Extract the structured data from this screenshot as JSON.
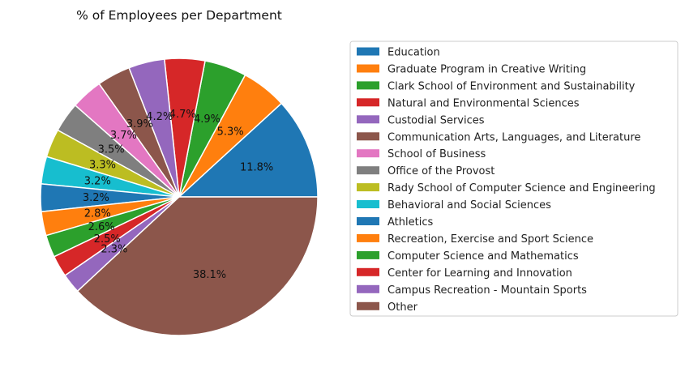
{
  "chart_data": {
    "type": "pie",
    "title": "% of Employees per Department",
    "legend_position": "right",
    "slices": [
      {
        "label": "Education",
        "value": 11.8,
        "pct_label": "11.8%",
        "color": "#1f77b4"
      },
      {
        "label": "Graduate Program in Creative Writing",
        "value": 5.3,
        "pct_label": "5.3%",
        "color": "#ff7f0e"
      },
      {
        "label": "Clark School of Environment and Sustainability",
        "value": 4.9,
        "pct_label": "4.9%",
        "color": "#2ca02c"
      },
      {
        "label": "Natural and Environmental Sciences",
        "value": 4.7,
        "pct_label": "4.7%",
        "color": "#d62728"
      },
      {
        "label": "Custodial Services",
        "value": 4.2,
        "pct_label": "4.2%",
        "color": "#9467bd"
      },
      {
        "label": "Communication Arts, Languages, and Literature",
        "value": 3.9,
        "pct_label": "3.9%",
        "color": "#8c564b"
      },
      {
        "label": "School of Business",
        "value": 3.7,
        "pct_label": "3.7%",
        "color": "#e377c2"
      },
      {
        "label": "Office of the Provost",
        "value": 3.5,
        "pct_label": "3.5%",
        "color": "#7f7f7f"
      },
      {
        "label": "Rady School of Computer Science and Engineering",
        "value": 3.3,
        "pct_label": "3.3%",
        "color": "#bcbd22"
      },
      {
        "label": "Behavioral and Social Sciences",
        "value": 3.2,
        "pct_label": "3.2%",
        "color": "#17becf"
      },
      {
        "label": "Athletics",
        "value": 3.2,
        "pct_label": "3.2%",
        "color": "#1f77b4"
      },
      {
        "label": "Recreation, Exercise and Sport Science",
        "value": 2.8,
        "pct_label": "2.8%",
        "color": "#ff7f0e"
      },
      {
        "label": "Computer Science and Mathematics",
        "value": 2.6,
        "pct_label": "2.6%",
        "color": "#2ca02c"
      },
      {
        "label": "Center for Learning and Innovation",
        "value": 2.5,
        "pct_label": "2.5%",
        "color": "#d62728"
      },
      {
        "label": "Campus Recreation - Mountain Sports",
        "value": 2.3,
        "pct_label": "2.3%",
        "color": "#9467bd"
      },
      {
        "label": "Other",
        "value": 38.1,
        "pct_label": "38.1%",
        "color": "#8c564b"
      }
    ]
  }
}
